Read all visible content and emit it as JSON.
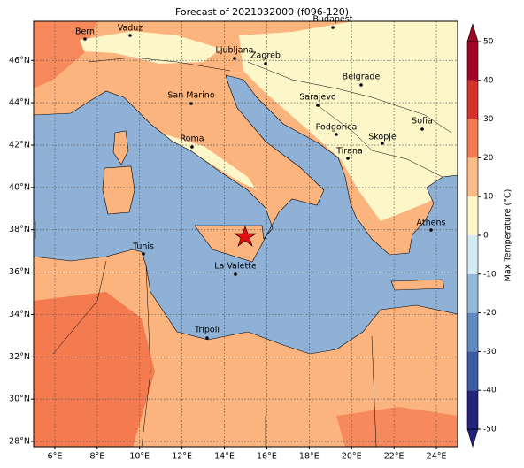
{
  "title": "Forecast of 2021032000 (f096-120)",
  "map": {
    "lonlim": [
      5,
      25
    ],
    "latlim": [
      27.75,
      47.85
    ],
    "lon_ticks": [
      {
        "value": 6,
        "label": "6°E"
      },
      {
        "value": 8,
        "label": "8°E"
      },
      {
        "value": 10,
        "label": "10°E"
      },
      {
        "value": 12,
        "label": "12°E"
      },
      {
        "value": 14,
        "label": "14°E"
      },
      {
        "value": 16,
        "label": "16°E"
      },
      {
        "value": 18,
        "label": "18°E"
      },
      {
        "value": 20,
        "label": "20°E"
      },
      {
        "value": 22,
        "label": "22°E"
      },
      {
        "value": 24,
        "label": "24°E"
      }
    ],
    "lat_ticks": [
      {
        "value": 28,
        "label": "28°N"
      },
      {
        "value": 30,
        "label": "30°N"
      },
      {
        "value": 32,
        "label": "32°N"
      },
      {
        "value": 34,
        "label": "34°N"
      },
      {
        "value": 36,
        "label": "36°N"
      },
      {
        "value": 38,
        "label": "38°N"
      },
      {
        "value": 40,
        "label": "40°N"
      },
      {
        "value": 42,
        "label": "42°N"
      },
      {
        "value": 44,
        "label": "44°N"
      },
      {
        "value": 46,
        "label": "46°N"
      }
    ],
    "grid": true,
    "cities": [
      "Bern",
      "Vaduz",
      "Ljubljana",
      "Zagreb",
      "Budapest",
      "San Marino",
      "Belgrade",
      "Sarajevo",
      "Roma",
      "Podgorica",
      "Skopje",
      "Sofia",
      "Tirana",
      "Athens",
      "Tunis",
      "La Valette",
      "Tripoli"
    ]
  },
  "colorbar": {
    "label": "Max Temperature (°C)",
    "range": [
      -50,
      50
    ],
    "ticks": [
      -50,
      -40,
      -30,
      -20,
      -10,
      0,
      10,
      20,
      30,
      40,
      50
    ],
    "colors": [
      "#23237e",
      "#3d5ca6",
      "#5f8bc0",
      "#91b8d9",
      "#d2ebf2",
      "#fdf6c9",
      "#fcbb86",
      "#f47a50",
      "#d3332a",
      "#a00526"
    ]
  }
}
